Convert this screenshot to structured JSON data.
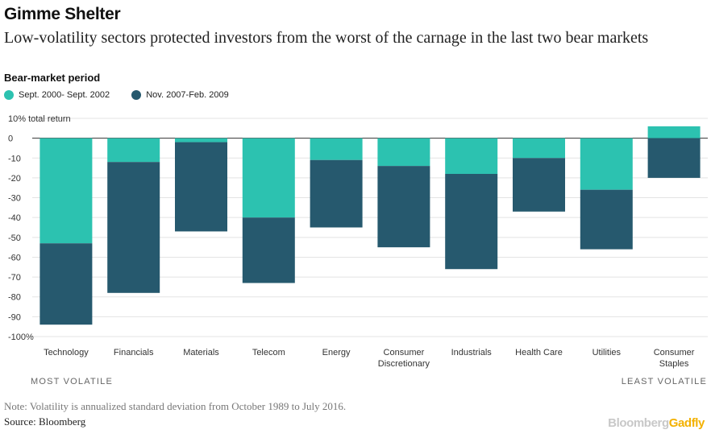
{
  "title": "Gimme Shelter",
  "subtitle": "Low-volatility sectors protected investors from the worst of the carnage in the last two bear markets",
  "legend": {
    "title": "Bear-market period",
    "items": [
      {
        "label": "Sept. 2000- Sept. 2002",
        "color": "#2cc2b0"
      },
      {
        "label": "Nov. 2007-Feb. 2009",
        "color": "#26596e"
      }
    ]
  },
  "chart_data": {
    "type": "bar",
    "stacked": true,
    "categories": [
      "Technology",
      "Financials",
      "Materials",
      "Telecom",
      "Energy",
      "Consumer Discretionary",
      "Industrials",
      "Health Care",
      "Utilities",
      "Consumer Staples"
    ],
    "category_lines": [
      [
        "Technology"
      ],
      [
        "Financials"
      ],
      [
        "Materials"
      ],
      [
        "Telecom"
      ],
      [
        "Energy"
      ],
      [
        "Consumer",
        "Discretionary"
      ],
      [
        "Industrials"
      ],
      [
        "Health Care"
      ],
      [
        "Utilities"
      ],
      [
        "Consumer",
        "Staples"
      ]
    ],
    "series": [
      {
        "name": "Sept. 2000- Sept. 2002",
        "color": "#2cc2b0",
        "values": [
          -53,
          -12,
          -2,
          -40,
          -11,
          -14,
          -18,
          -10,
          -26,
          6
        ]
      },
      {
        "name": "Nov. 2007-Feb. 2009",
        "color": "#26596e",
        "values": [
          -41,
          -66,
          -45,
          -33,
          -34,
          -41,
          -48,
          -27,
          -30,
          -20
        ]
      }
    ],
    "yticks": [
      10,
      0,
      -10,
      -20,
      -30,
      -40,
      -50,
      -60,
      -70,
      -80,
      -90,
      -100
    ],
    "ytick_labels": [
      "10% total return",
      "0",
      "-10",
      "-20",
      "-30",
      "-40",
      "-50",
      "-60",
      "-70",
      "-80",
      "-90",
      "-100%"
    ],
    "ylim": [
      -100,
      10
    ],
    "grid": true
  },
  "volatility": {
    "left": "MOST VOLATILE",
    "right": "LEAST VOLATILE"
  },
  "note": "Note: Volatility is annualized standard deviation from October 1989 to July 2016.",
  "source": "Source: Bloomberg",
  "brand": {
    "part1": "Bloomberg",
    "part2": "Gadfly"
  }
}
